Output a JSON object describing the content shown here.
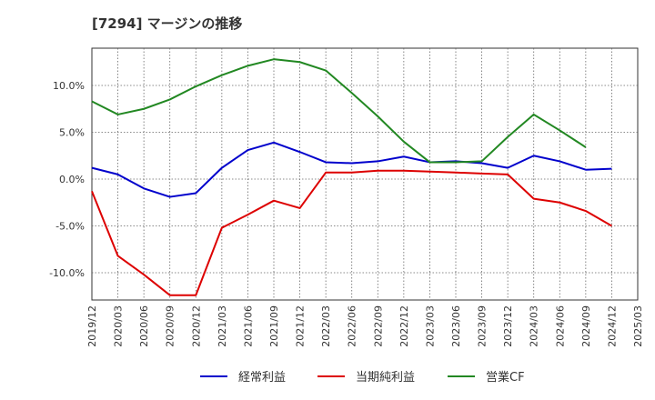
{
  "chart_data": {
    "type": "line",
    "title": "[7294]  マージンの推移",
    "xlabel": "",
    "ylabel": "",
    "x": [
      "2019/12",
      "2020/03",
      "2020/06",
      "2020/09",
      "2020/12",
      "2021/03",
      "2021/06",
      "2021/09",
      "2021/12",
      "2022/03",
      "2022/06",
      "2022/09",
      "2022/12",
      "2023/03",
      "2023/06",
      "2023/09",
      "2023/12",
      "2024/03",
      "2024/06",
      "2024/09",
      "2024/12",
      "2025/03"
    ],
    "ylim": [
      -13,
      14
    ],
    "y_ticks": [
      10,
      5,
      0,
      -5,
      -10
    ],
    "y_tick_labels": [
      "10.0%",
      "5.0%",
      "0.0%",
      "-5.0%",
      "-10.0%"
    ],
    "grid": true,
    "legend_position": "bottom",
    "series": [
      {
        "name": "経常利益",
        "color": "#0000cc",
        "values": [
          1.2,
          0.5,
          -1.0,
          -1.9,
          -1.5,
          1.2,
          3.1,
          3.9,
          2.9,
          1.8,
          1.7,
          1.9,
          2.4,
          1.8,
          1.9,
          1.7,
          1.2,
          2.5,
          1.9,
          1.0,
          1.1,
          null
        ]
      },
      {
        "name": "当期純利益",
        "color": "#dd0000",
        "values": [
          -1.3,
          -8.2,
          -10.2,
          -12.4,
          -12.4,
          -5.2,
          -3.8,
          -2.3,
          -3.1,
          0.7,
          0.7,
          0.9,
          0.9,
          0.8,
          0.7,
          0.6,
          0.5,
          -2.1,
          -2.5,
          -3.4,
          -5.0,
          null
        ]
      },
      {
        "name": "営業CF",
        "color": "#228822",
        "values": [
          8.3,
          6.9,
          7.5,
          8.5,
          9.9,
          11.1,
          12.1,
          12.8,
          12.5,
          11.6,
          9.2,
          6.7,
          4.0,
          1.8,
          1.8,
          1.9,
          4.5,
          6.9,
          5.2,
          3.4,
          null,
          null
        ]
      }
    ]
  }
}
